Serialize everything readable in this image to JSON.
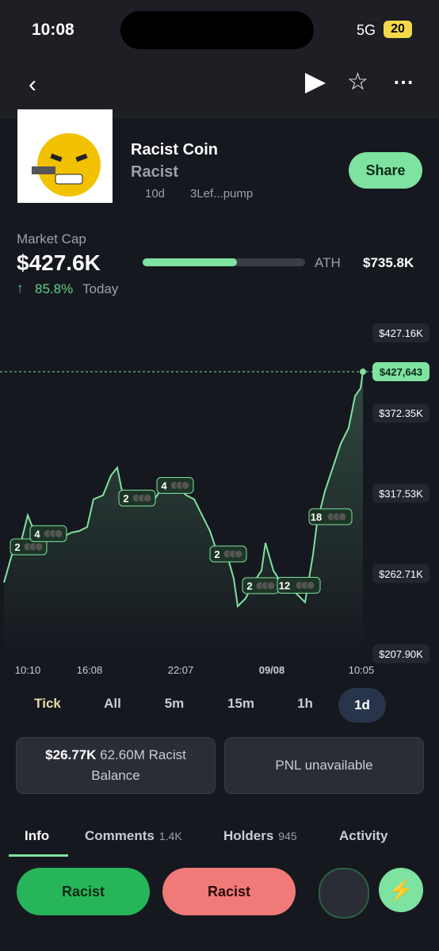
{
  "status_bar": {
    "time": "10:08",
    "network": "5G",
    "battery": "20"
  },
  "token": {
    "name": "Racist Coin",
    "ticker": "Racist",
    "age": "10d",
    "address": "3Lef...pump",
    "share": "Share"
  },
  "market_cap": {
    "label": "Market Cap",
    "value": "$427.6K",
    "change": "85.8%",
    "period": "Today",
    "ath_label": "ATH",
    "ath_value": "$735.8K"
  },
  "chart_data": {
    "type": "line",
    "color": "#7ee2a0",
    "x": [
      5,
      15,
      25,
      35,
      45,
      60,
      75,
      90,
      100,
      110,
      118,
      130,
      140,
      148,
      155,
      165,
      175,
      185,
      195,
      205,
      215,
      225,
      235,
      245,
      255,
      265,
      275,
      285,
      295,
      300,
      310,
      320,
      330,
      335,
      345,
      355,
      365,
      375,
      385,
      395,
      400,
      410,
      420,
      430,
      440,
      448,
      455,
      458
    ],
    "values": [
      256600,
      275600,
      281000,
      302600,
      289100,
      291800,
      286400,
      290700,
      291800,
      294500,
      313500,
      316200,
      329700,
      335100,
      316200,
      313500,
      314600,
      316200,
      313500,
      321600,
      324300,
      321600,
      316200,
      313500,
      302600,
      291800,
      275600,
      278300,
      259300,
      240400,
      245800,
      256600,
      264700,
      283700,
      264700,
      256600,
      253900,
      248500,
      243100,
      275600,
      297200,
      318900,
      335100,
      351400,
      362200,
      383900,
      389300,
      400600
    ],
    "xlim": [
      0,
      470
    ],
    "xticks": [
      {
        "value": 35,
        "label": "10:10"
      },
      {
        "value": 113,
        "label": "16:08"
      },
      {
        "value": 228,
        "label": "22:07"
      },
      {
        "value": 343,
        "label": "09/08"
      },
      {
        "value": 456,
        "label": "10:05"
      }
    ],
    "ylim": [
      207900,
      427160
    ],
    "yticks": [
      {
        "value": 427160,
        "label": "$427.16K"
      },
      {
        "value": 372350,
        "label": "$372.35K"
      },
      {
        "value": 317530,
        "label": "$317.53K"
      },
      {
        "value": 262710,
        "label": "$262.71K"
      },
      {
        "value": 207900,
        "label": "$207.90K"
      }
    ],
    "last_price_label": "$427,643",
    "trade_markers": [
      {
        "x": 25,
        "count": 2
      },
      {
        "x": 50,
        "count": 4
      },
      {
        "x": 162,
        "count": 2
      },
      {
        "x": 210,
        "count": 4
      },
      {
        "x": 277,
        "count": 2
      },
      {
        "x": 318,
        "count": 2
      },
      {
        "x": 362,
        "count": 12
      },
      {
        "x": 402,
        "count": 18
      }
    ]
  },
  "timeframes": [
    "Tick",
    "All",
    "5m",
    "15m",
    "1h",
    "1d"
  ],
  "position": {
    "amount": "$26.77K",
    "tokens": "62.60M Racist",
    "label": "Balance",
    "pnl": "PNL unavailable"
  },
  "tabs": [
    {
      "label": "Info"
    },
    {
      "label": "Comments",
      "count": "1.4K"
    },
    {
      "label": "Holders",
      "count": 945
    },
    {
      "label": "Activity"
    }
  ],
  "actions": {
    "buy": "Racist",
    "sell": "Racist"
  }
}
